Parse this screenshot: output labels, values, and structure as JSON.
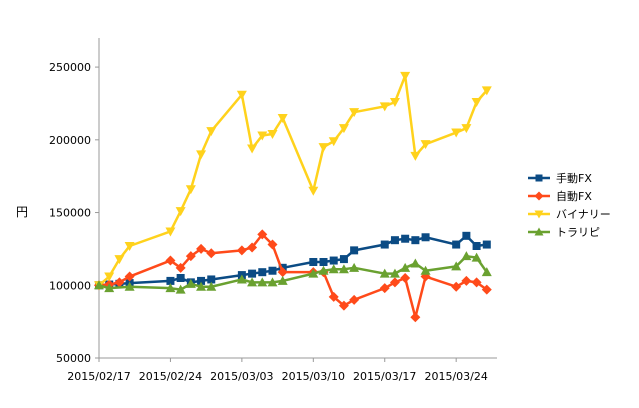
{
  "chart_data": {
    "type": "line",
    "title": "",
    "xlabel": "",
    "ylabel": "円",
    "ylim": [
      50000,
      270000
    ],
    "yticks": [
      50000,
      100000,
      150000,
      200000,
      250000
    ],
    "xlim": [
      "2015/02/17",
      "2015/03/28"
    ],
    "xticks": [
      "2015/02/17",
      "2015/02/24",
      "2015/03/03",
      "2015/03/10",
      "2015/03/17",
      "2015/03/24"
    ],
    "grid": false,
    "legend_position": "right",
    "series": [
      {
        "name": "手動FX",
        "color": "#0b4b84",
        "marker": "square",
        "points": [
          [
            "2015/02/17",
            100000
          ],
          [
            "2015/02/18",
            100500
          ],
          [
            "2015/02/19",
            101000
          ],
          [
            "2015/02/20",
            101500
          ],
          [
            "2015/02/24",
            103000
          ],
          [
            "2015/02/25",
            105000
          ],
          [
            "2015/02/26",
            102000
          ],
          [
            "2015/02/27",
            103000
          ],
          [
            "2015/02/28",
            104000
          ],
          [
            "2015/03/03",
            107000
          ],
          [
            "2015/03/04",
            108000
          ],
          [
            "2015/03/05",
            109000
          ],
          [
            "2015/03/06",
            110000
          ],
          [
            "2015/03/07",
            112000
          ],
          [
            "2015/03/10",
            116000
          ],
          [
            "2015/03/11",
            116000
          ],
          [
            "2015/03/12",
            117000
          ],
          [
            "2015/03/13",
            118000
          ],
          [
            "2015/03/14",
            124000
          ],
          [
            "2015/03/17",
            128000
          ],
          [
            "2015/03/18",
            131000
          ],
          [
            "2015/03/19",
            132000
          ],
          [
            "2015/03/20",
            131000
          ],
          [
            "2015/03/21",
            133000
          ],
          [
            "2015/03/24",
            128000
          ],
          [
            "2015/03/25",
            134000
          ],
          [
            "2015/03/26",
            127000
          ],
          [
            "2015/03/27",
            128000
          ]
        ]
      },
      {
        "name": "自動FX",
        "color": "#ff4a1a",
        "marker": "diamond",
        "points": [
          [
            "2015/02/17",
            100000
          ],
          [
            "2015/02/18",
            100500
          ],
          [
            "2015/02/19",
            102000
          ],
          [
            "2015/02/20",
            106000
          ],
          [
            "2015/02/24",
            117000
          ],
          [
            "2015/02/25",
            112000
          ],
          [
            "2015/02/26",
            120000
          ],
          [
            "2015/02/27",
            125000
          ],
          [
            "2015/02/28",
            122000
          ],
          [
            "2015/03/03",
            124000
          ],
          [
            "2015/03/04",
            126000
          ],
          [
            "2015/03/05",
            135000
          ],
          [
            "2015/03/06",
            128000
          ],
          [
            "2015/03/07",
            109000
          ],
          [
            "2015/03/10",
            109000
          ],
          [
            "2015/03/11",
            109000
          ],
          [
            "2015/03/12",
            92000
          ],
          [
            "2015/03/13",
            86000
          ],
          [
            "2015/03/14",
            90000
          ],
          [
            "2015/03/17",
            98000
          ],
          [
            "2015/03/18",
            102000
          ],
          [
            "2015/03/19",
            105000
          ],
          [
            "2015/03/20",
            78000
          ],
          [
            "2015/03/21",
            106000
          ],
          [
            "2015/03/24",
            99000
          ],
          [
            "2015/03/25",
            103000
          ],
          [
            "2015/03/26",
            102000
          ],
          [
            "2015/03/27",
            97000
          ]
        ]
      },
      {
        "name": "バイナリー",
        "color": "#ffd21c",
        "marker": "triangle-down",
        "points": [
          [
            "2015/02/17",
            100000
          ],
          [
            "2015/02/18",
            106000
          ],
          [
            "2015/02/19",
            118000
          ],
          [
            "2015/02/20",
            127000
          ],
          [
            "2015/02/24",
            137000
          ],
          [
            "2015/02/25",
            151000
          ],
          [
            "2015/02/26",
            166000
          ],
          [
            "2015/02/27",
            190000
          ],
          [
            "2015/02/28",
            206000
          ],
          [
            "2015/03/03",
            231000
          ],
          [
            "2015/03/04",
            194000
          ],
          [
            "2015/03/05",
            203000
          ],
          [
            "2015/03/06",
            204000
          ],
          [
            "2015/03/07",
            215000
          ],
          [
            "2015/03/10",
            165000
          ],
          [
            "2015/03/11",
            195000
          ],
          [
            "2015/03/12",
            199000
          ],
          [
            "2015/03/13",
            208000
          ],
          [
            "2015/03/14",
            219000
          ],
          [
            "2015/03/17",
            223000
          ],
          [
            "2015/03/18",
            226000
          ],
          [
            "2015/03/19",
            244000
          ],
          [
            "2015/03/20",
            189000
          ],
          [
            "2015/03/21",
            197000
          ],
          [
            "2015/03/24",
            205000
          ],
          [
            "2015/03/25",
            208000
          ],
          [
            "2015/03/26",
            226000
          ],
          [
            "2015/03/27",
            234000
          ]
        ]
      },
      {
        "name": "トラリピ",
        "color": "#6aa130",
        "marker": "triangle-up",
        "points": [
          [
            "2015/02/17",
            100000
          ],
          [
            "2015/02/18",
            98000
          ],
          [
            "2015/02/20",
            99000
          ],
          [
            "2015/02/24",
            98000
          ],
          [
            "2015/02/25",
            97000
          ],
          [
            "2015/02/26",
            101000
          ],
          [
            "2015/02/27",
            99000
          ],
          [
            "2015/02/28",
            99000
          ],
          [
            "2015/03/03",
            104000
          ],
          [
            "2015/03/04",
            102000
          ],
          [
            "2015/03/05",
            102000
          ],
          [
            "2015/03/06",
            102000
          ],
          [
            "2015/03/07",
            103000
          ],
          [
            "2015/03/10",
            108000
          ],
          [
            "2015/03/11",
            110000
          ],
          [
            "2015/03/12",
            111000
          ],
          [
            "2015/03/13",
            111000
          ],
          [
            "2015/03/14",
            112000
          ],
          [
            "2015/03/17",
            108000
          ],
          [
            "2015/03/18",
            108000
          ],
          [
            "2015/03/19",
            112000
          ],
          [
            "2015/03/20",
            115000
          ],
          [
            "2015/03/21",
            110000
          ],
          [
            "2015/03/24",
            113000
          ],
          [
            "2015/03/25",
            120000
          ],
          [
            "2015/03/26",
            119000
          ],
          [
            "2015/03/27",
            109000
          ]
        ]
      }
    ]
  }
}
